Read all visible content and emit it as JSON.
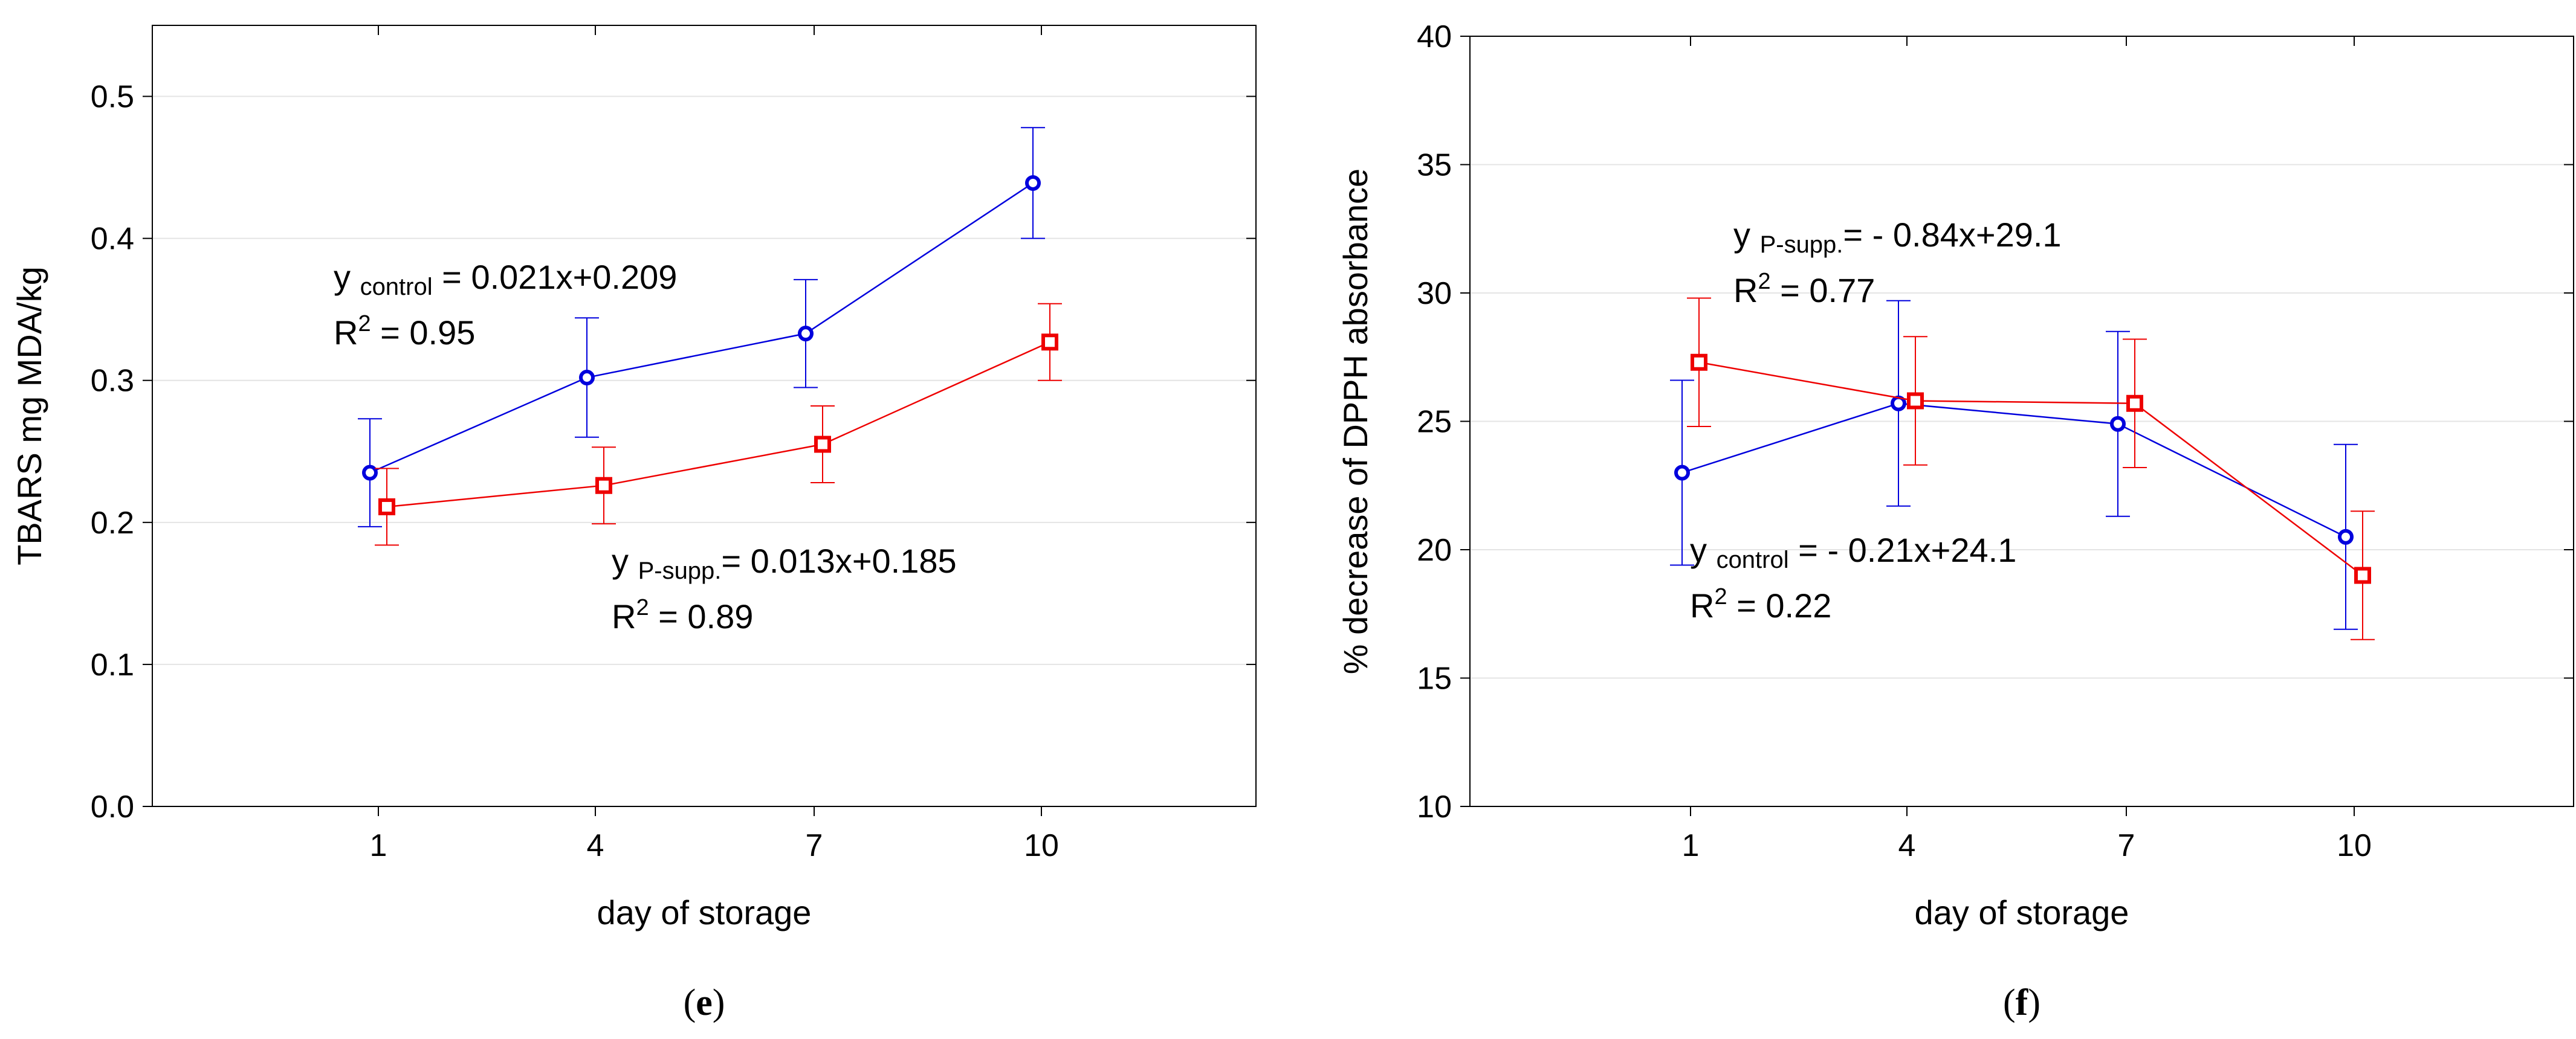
{
  "chart_data": [
    {
      "type": "line",
      "panel_label": "e",
      "xlabel": "day of storage",
      "ylabel": "TBARS mg MDA/kg",
      "categories": [
        "1",
        "4",
        "7",
        "10"
      ],
      "ylim": [
        0,
        0.55
      ],
      "yticks": [
        "0.0",
        "0.1",
        "0.2",
        "0.3",
        "0.4",
        "0.5"
      ],
      "grid": true,
      "series": [
        {
          "name": "control",
          "color": "#0000dd",
          "marker": "circle",
          "values": [
            0.235,
            0.302,
            0.333,
            0.439
          ],
          "err": [
            0.038,
            0.042,
            0.038,
            0.039
          ]
        },
        {
          "name": "P-supp.",
          "color": "#ee0000",
          "marker": "square",
          "values": [
            0.211,
            0.226,
            0.255,
            0.327
          ],
          "err": [
            0.027,
            0.027,
            0.027,
            0.027
          ]
        }
      ],
      "annotations": [
        {
          "line1_prefix": "y ",
          "line1_sub": "control",
          "line1_suffix": " = 0.021x+0.209",
          "line2_prefix": "R",
          "line2_sup": "2",
          "line2_suffix": " = 0.95"
        },
        {
          "line1_prefix": "y ",
          "line1_sub": "P-supp.",
          "line1_suffix": "= 0.013x+0.185",
          "line2_prefix": "R",
          "line2_sup": "2",
          "line2_suffix": " = 0.89"
        }
      ]
    },
    {
      "type": "line",
      "panel_label": "f",
      "xlabel": "day of storage",
      "ylabel": "% decrease of DPPH absorbance",
      "categories": [
        "1",
        "4",
        "7",
        "10"
      ],
      "ylim": [
        10,
        40
      ],
      "yticks": [
        "10",
        "15",
        "20",
        "25",
        "30",
        "35",
        "40"
      ],
      "grid": true,
      "series": [
        {
          "name": "control",
          "color": "#0000dd",
          "marker": "circle",
          "values": [
            23.0,
            25.7,
            24.9,
            20.5
          ],
          "err": [
            3.6,
            4.0,
            3.6,
            3.6
          ]
        },
        {
          "name": "P-supp.",
          "color": "#ee0000",
          "marker": "square",
          "values": [
            27.3,
            25.8,
            25.7,
            19.0
          ],
          "err": [
            2.5,
            2.5,
            2.5,
            2.5
          ]
        }
      ],
      "annotations": [
        {
          "line1_prefix": "y ",
          "line1_sub": "P-supp.",
          "line1_suffix": "= - 0.84x+29.1",
          "line2_prefix": "R",
          "line2_sup": "2",
          "line2_suffix": " = 0.77"
        },
        {
          "line1_prefix": "y ",
          "line1_sub": "control",
          "line1_suffix": " = - 0.21x+24.1",
          "line2_prefix": "R",
          "line2_sup": "2",
          "line2_suffix": " = 0.22"
        }
      ]
    }
  ]
}
